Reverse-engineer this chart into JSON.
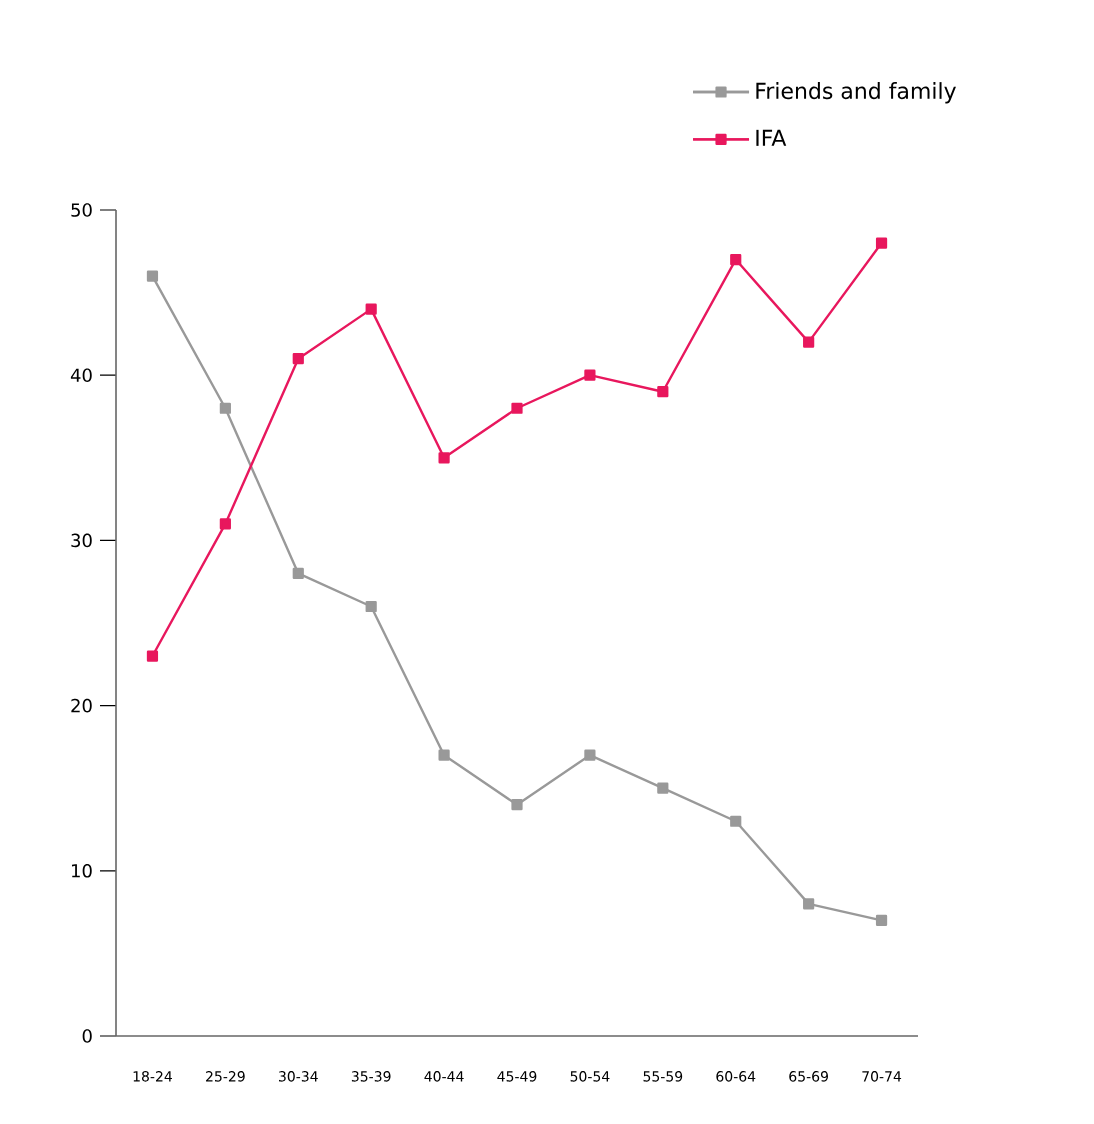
{
  "chart_data": {
    "type": "line",
    "categories": [
      "18-24",
      "25-29",
      "30-34",
      "35-39",
      "40-44",
      "45-49",
      "50-54",
      "55-59",
      "60-64",
      "65-69",
      "70-74"
    ],
    "series": [
      {
        "name": "Friends and family",
        "color": "#999999",
        "values": [
          46,
          38,
          28,
          26,
          17,
          14,
          17,
          15,
          13,
          8,
          7
        ]
      },
      {
        "name": "IFA",
        "color": "#e8175d",
        "values": [
          23,
          31,
          41,
          44,
          35,
          38,
          40,
          39,
          47,
          42,
          48
        ]
      }
    ],
    "ylim": [
      0,
      50
    ],
    "yticks": [
      0,
      10,
      20,
      30,
      40,
      50
    ],
    "marker": "square",
    "line_style": "solid",
    "legend": "top right",
    "grid": false
  }
}
